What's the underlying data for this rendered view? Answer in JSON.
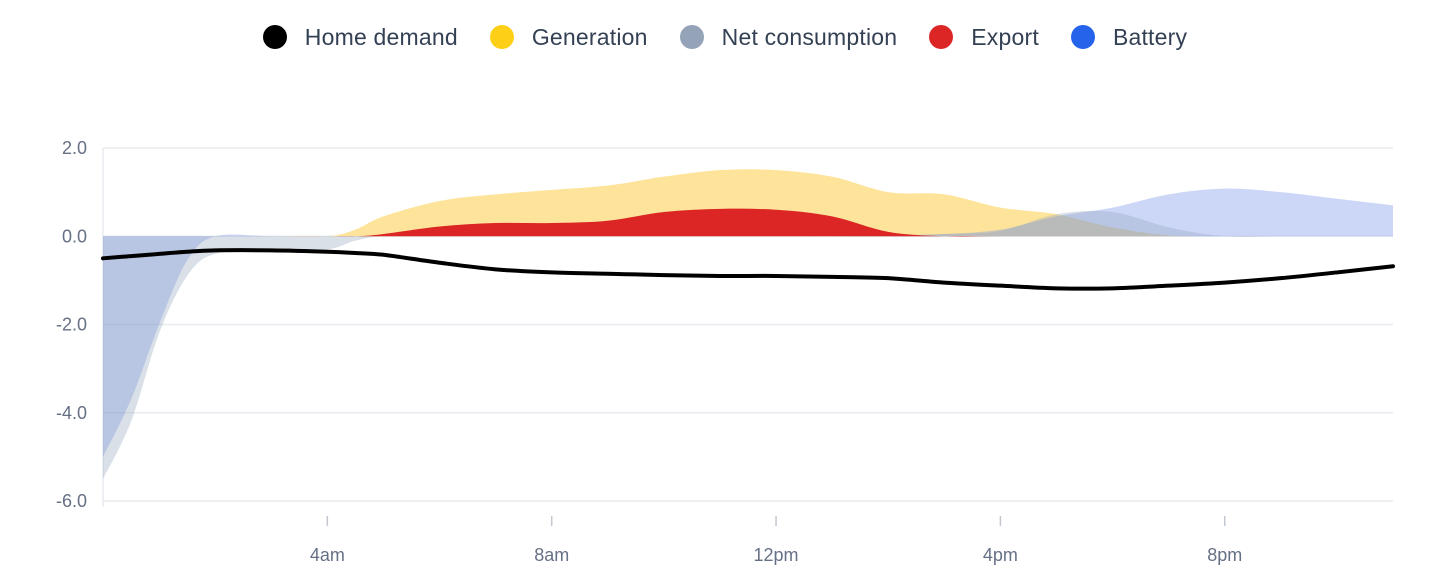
{
  "chart_data": {
    "type": "area",
    "xlim": [
      0,
      23
    ],
    "ylim": [
      -6,
      2
    ],
    "x_ticks": [
      {
        "x": 4,
        "label": "4am"
      },
      {
        "x": 8,
        "label": "8am"
      },
      {
        "x": 12,
        "label": "12pm"
      },
      {
        "x": 16,
        "label": "4pm"
      },
      {
        "x": 20,
        "label": "8pm"
      }
    ],
    "y_ticks": [
      {
        "y": 2,
        "label": "2.0"
      },
      {
        "y": 0,
        "label": "0.0"
      },
      {
        "y": -2,
        "label": "-2.0"
      },
      {
        "y": -4,
        "label": "-4.0"
      },
      {
        "y": -6,
        "label": "-6.0"
      }
    ],
    "grid": true,
    "legend_position": "top-center",
    "x": [
      0,
      0.5,
      1,
      1.5,
      2,
      3,
      4,
      4.5,
      5,
      6,
      7,
      8,
      9,
      10,
      11,
      12,
      13,
      14,
      15,
      16,
      17,
      18,
      19,
      20,
      21,
      22,
      23
    ],
    "series": [
      {
        "name": "Generation",
        "color": "#fdd835",
        "fill": "#fde49a",
        "kind": "area",
        "values": [
          0,
          0,
          0,
          0,
          0,
          0,
          0,
          0.15,
          0.45,
          0.8,
          0.95,
          1.05,
          1.15,
          1.35,
          1.5,
          1.5,
          1.35,
          1.0,
          0.95,
          0.65,
          0.5,
          0.2,
          0.02,
          0,
          0,
          0,
          0
        ]
      },
      {
        "name": "Battery",
        "color": "#2563eb",
        "fill": "rgba(120,150,235,0.38)",
        "kind": "area",
        "values": [
          -5.0,
          -3.7,
          -2.0,
          -0.55,
          0,
          0,
          0,
          0,
          0,
          0,
          0,
          0,
          0,
          0,
          0,
          0,
          0,
          0.02,
          0.05,
          0.15,
          0.45,
          0.65,
          0.95,
          1.08,
          1.0,
          0.85,
          0.7
        ]
      },
      {
        "name": "Net consumption",
        "color": "#94a3b8",
        "fill": "rgba(150,165,190,0.35)",
        "kind": "area",
        "values": [
          -5.5,
          -4.2,
          -2.2,
          -0.9,
          -0.4,
          -0.35,
          -0.3,
          -0.1,
          0,
          0,
          0,
          0,
          0,
          0,
          0,
          0,
          0,
          0,
          0.05,
          0.12,
          0.5,
          0.55,
          0.2,
          0,
          0,
          0,
          0
        ]
      },
      {
        "name": "Export",
        "color": "#dc2626",
        "fill": "#dc2626",
        "kind": "area",
        "values": [
          0,
          0,
          0,
          0,
          0,
          0,
          0,
          0,
          0.05,
          0.22,
          0.3,
          0.3,
          0.35,
          0.55,
          0.62,
          0.6,
          0.45,
          0.1,
          0,
          0,
          0,
          0,
          0,
          0,
          0,
          0,
          0
        ]
      },
      {
        "name": "Home demand",
        "color": "#000000",
        "kind": "line",
        "values": [
          -0.5,
          -0.45,
          -0.4,
          -0.35,
          -0.32,
          -0.32,
          -0.35,
          -0.38,
          -0.42,
          -0.6,
          -0.75,
          -0.82,
          -0.85,
          -0.88,
          -0.9,
          -0.9,
          -0.92,
          -0.95,
          -1.05,
          -1.12,
          -1.18,
          -1.18,
          -1.12,
          -1.05,
          -0.95,
          -0.82,
          -0.68
        ]
      }
    ],
    "legend": [
      {
        "name": "Home demand",
        "color": "#000000"
      },
      {
        "name": "Generation",
        "color": "#fdd017"
      },
      {
        "name": "Net consumption",
        "color": "#94a3b8"
      },
      {
        "name": "Export",
        "color": "#dc2626"
      },
      {
        "name": "Battery",
        "color": "#2563eb"
      }
    ]
  }
}
